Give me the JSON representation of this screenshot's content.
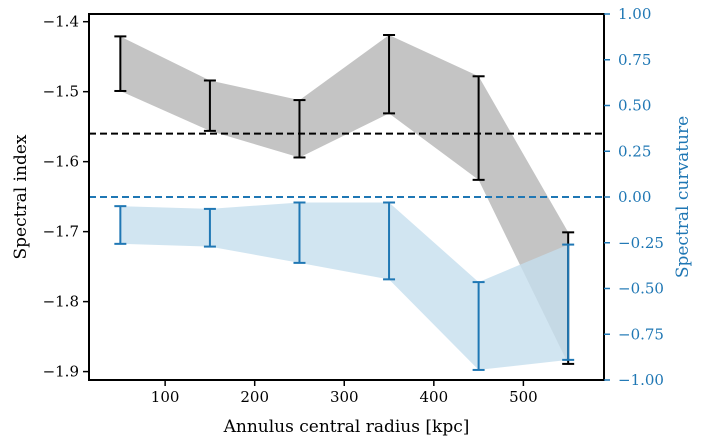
{
  "chart_data": {
    "type": "line",
    "xlabel": "Annulus central radius [kpc]",
    "ylabel": "Spectral index",
    "ylabel_right": "Spectral curvature",
    "xlim": [
      15,
      590
    ],
    "ylim": [
      -1.912,
      -1.389
    ],
    "ylim_right": [
      -1.0,
      1.0
    ],
    "x_ticks": [
      100,
      200,
      300,
      400,
      500
    ],
    "x_tick_labels": [
      "100",
      "200",
      "300",
      "400",
      "500"
    ],
    "y_ticks": [
      -1.9,
      -1.8,
      -1.7,
      -1.6,
      -1.5,
      -1.4
    ],
    "y_tick_labels": [
      "−1.9",
      "−1.8",
      "−1.7",
      "−1.6",
      "−1.5",
      "−1.4"
    ],
    "y2_ticks": [
      -1.0,
      -0.75,
      -0.5,
      -0.25,
      0.0,
      0.25,
      0.5,
      0.75,
      1.0
    ],
    "y2_tick_labels": [
      "−1.00",
      "−0.75",
      "−0.50",
      "−0.25",
      "0.00",
      "0.25",
      "0.50",
      "0.75",
      "1.00"
    ],
    "grid": false,
    "series": [
      {
        "axis": "left",
        "color": "#000000",
        "fill_color": "#c4c4c4",
        "x": [
          50,
          150,
          250,
          350,
          450,
          550
        ],
        "y": [
          -1.46,
          -1.52,
          -1.553,
          -1.475,
          -1.552,
          -1.795
        ],
        "yerr": [
          0.039,
          0.036,
          0.041,
          0.056,
          0.074,
          0.094
        ]
      },
      {
        "axis": "right",
        "color": "#1f77b4",
        "fill_color": "#c6deee",
        "x": [
          50,
          150,
          250,
          350,
          450,
          550
        ],
        "y": [
          -0.153,
          -0.168,
          -0.195,
          -0.24,
          -0.705,
          -0.575
        ],
        "yerr": [
          0.103,
          0.103,
          0.165,
          0.21,
          0.24,
          0.315
        ]
      }
    ],
    "hlines": [
      {
        "axis": "left",
        "y": -1.56,
        "color": "#000000",
        "style": "dashed"
      },
      {
        "axis": "right",
        "y": 0.0,
        "color": "#1f77b4",
        "style": "dashed"
      }
    ]
  }
}
